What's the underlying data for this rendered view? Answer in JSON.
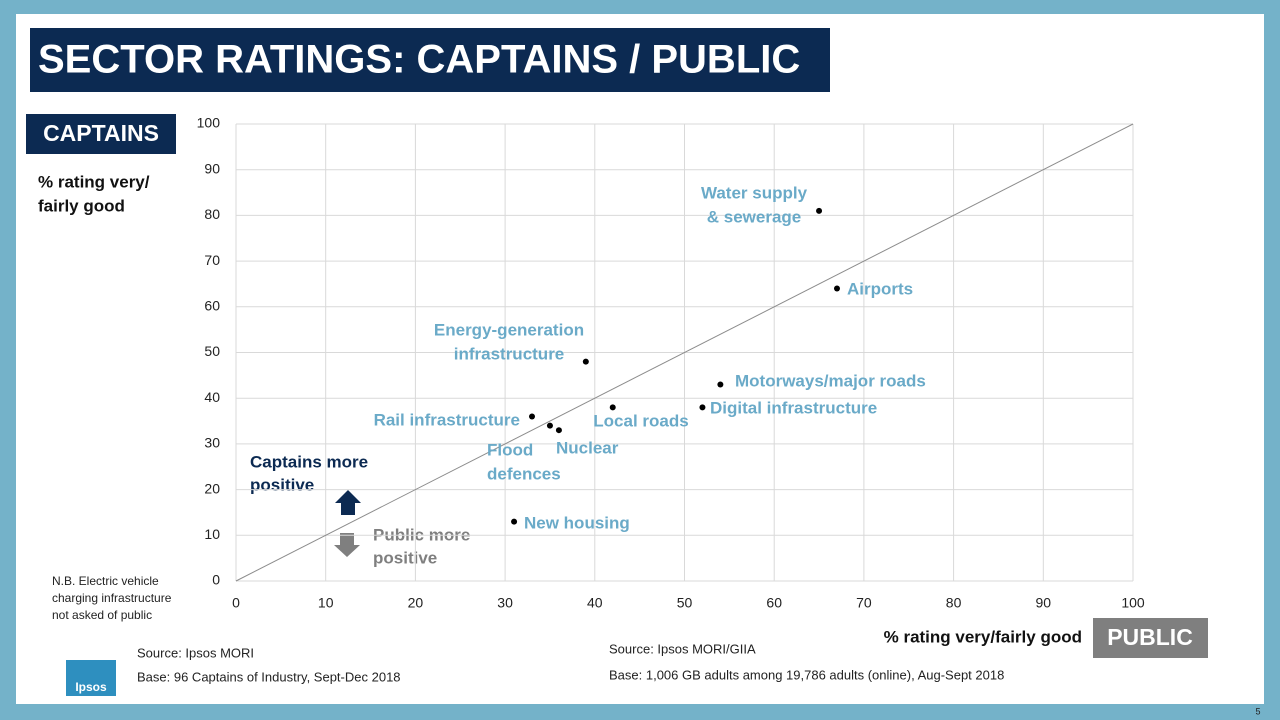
{
  "chart_data": {
    "type": "scatter",
    "title": "SECTOR RATINGS: CAPTAINS / PUBLIC",
    "y_tag": "CAPTAINS",
    "y_label": [
      "% rating very/",
      "fairly good"
    ],
    "x_tag": "PUBLIC",
    "x_label": "% rating very/fairly good",
    "x": [
      65,
      67,
      39,
      54,
      52,
      42,
      33,
      35,
      36,
      31
    ],
    "values": [
      81,
      64,
      48,
      43,
      38,
      38,
      36,
      34,
      33,
      13
    ],
    "point_labels": [
      [
        "Water supply",
        "& sewerage"
      ],
      [
        "Airports"
      ],
      [
        "Energy-generation",
        "infrastructure"
      ],
      [
        "Motorways/major roads"
      ],
      [
        "Digital infrastructure"
      ],
      [
        "Local roads"
      ],
      [
        "Rail infrastructure"
      ],
      [
        "Flood",
        "defences"
      ],
      [
        "Nuclear"
      ],
      [
        "New housing"
      ]
    ],
    "point_color": "#000000",
    "label_color": "#6aaac8",
    "xlim": [
      0,
      100
    ],
    "ylim": [
      0,
      100
    ],
    "xticks": [
      0,
      10,
      20,
      30,
      40,
      50,
      60,
      70,
      80,
      90,
      100
    ],
    "yticks": [
      0,
      10,
      20,
      30,
      40,
      50,
      60,
      70,
      80,
      90,
      100
    ],
    "grid": true,
    "annotations": {
      "captains_more": [
        "Captains more",
        "positive"
      ],
      "public_more": [
        "Public more",
        "positive"
      ],
      "note": [
        "N.B. Electric vehicle",
        "charging infrastructure",
        "not asked of public"
      ],
      "source_left": "Source: Ipsos MORI",
      "base_left": "Base: 96 Captains of Industry, Sept-Dec 2018",
      "source_right": "Source: Ipsos MORI/GIIA",
      "base_right": "Base: 1,006 GB adults among 19,786 adults (online), Aug-Sept 2018",
      "logo": "Ipsos",
      "page_number": "5"
    }
  }
}
